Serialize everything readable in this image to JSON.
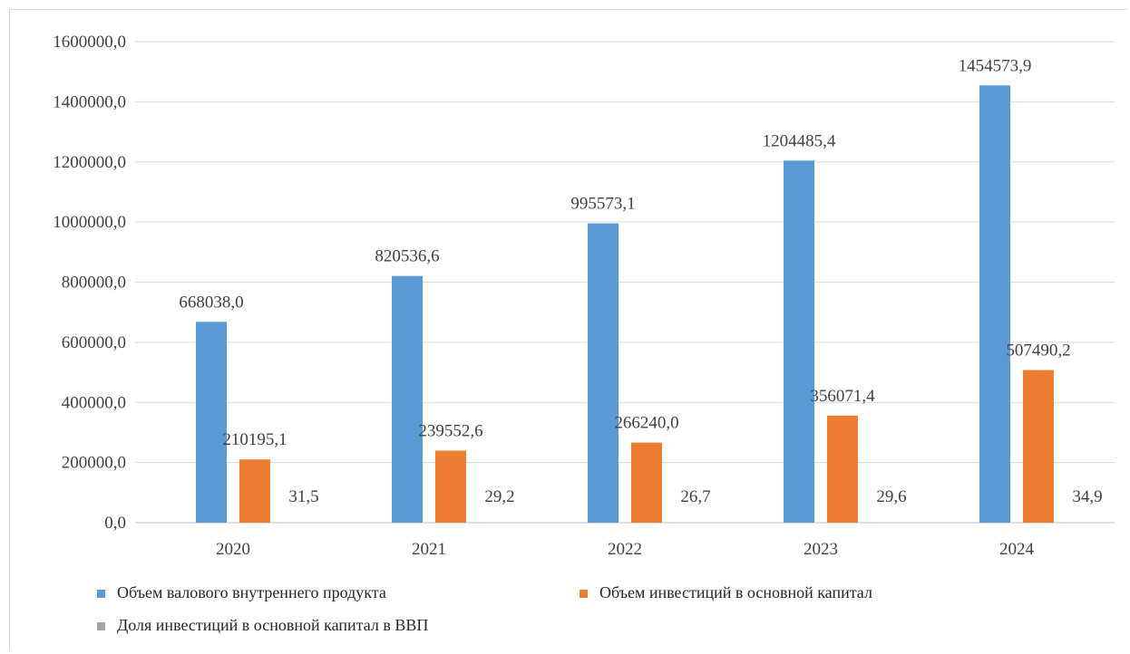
{
  "chart_data": {
    "type": "bar",
    "categories": [
      "2020",
      "2021",
      "2022",
      "2023",
      "2024"
    ],
    "series": [
      {
        "name": "Объем валового внутреннего продукта",
        "values": [
          668038.0,
          820536.6,
          995573.1,
          1204485.4,
          1454573.9
        ],
        "labels": [
          "668038,0",
          "820536,6",
          "995573,1",
          "1204485,4",
          "1454573,9"
        ],
        "color": "#5b9bd5"
      },
      {
        "name": "Объем инвестиций в основной капитал",
        "values": [
          210195.1,
          239552.6,
          266240.0,
          356071.4,
          507490.2
        ],
        "labels": [
          "210195,1",
          "239552,6",
          "266240,0",
          "356071,4",
          "507490,2"
        ],
        "color": "#ed7d31"
      },
      {
        "name": "Доля инвестиций в основной капитал в ВВП",
        "values": [
          31.5,
          29.2,
          26.7,
          29.6,
          34.9
        ],
        "labels": [
          "31,5",
          "29,2",
          "26,7",
          "29,6",
          "34,9"
        ],
        "color": "#a5a5a5"
      }
    ],
    "yticks": [
      0,
      200000,
      400000,
      600000,
      800000,
      1000000,
      1200000,
      1400000,
      1600000
    ],
    "ytick_labels": [
      "0,0",
      "200000,0",
      "400000,0",
      "600000,0",
      "800000,0",
      "1000000,0",
      "1200000,0",
      "1400000,0",
      "1600000,0"
    ],
    "ylim": [
      0,
      1600000
    ],
    "grid": true,
    "legend_position": "bottom",
    "title": "",
    "xlabel": "",
    "ylabel": ""
  }
}
